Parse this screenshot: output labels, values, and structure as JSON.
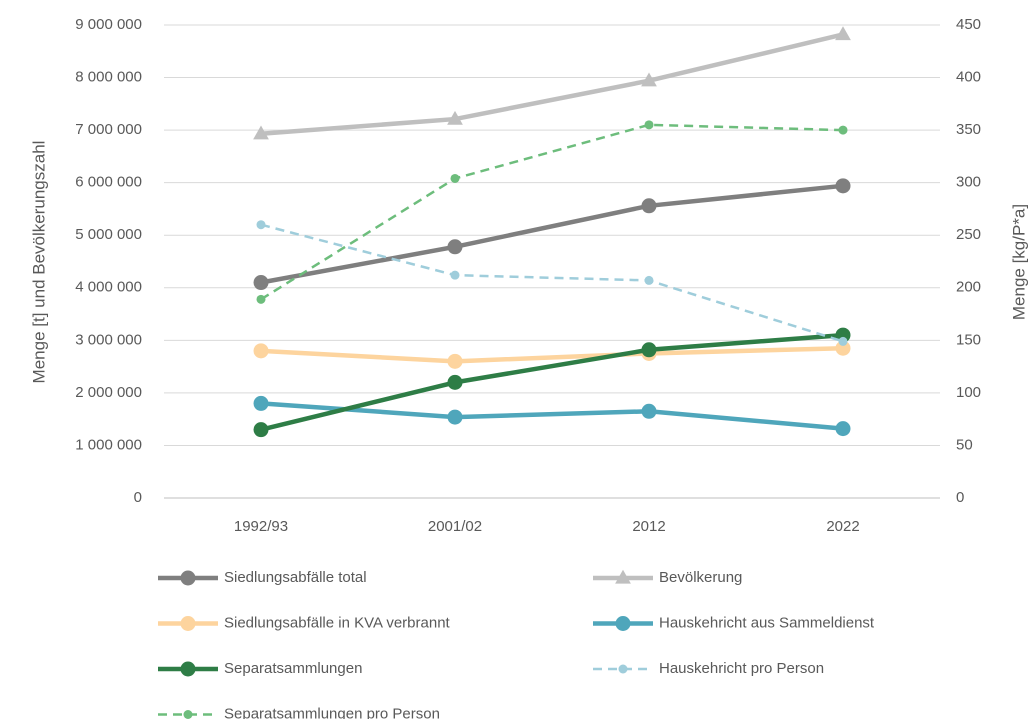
{
  "chart_data": {
    "type": "line",
    "categories": [
      "1992/93",
      "2001/02",
      "2012",
      "2022"
    ],
    "ylabel": "Menge [t] und Bevölkerungszahl",
    "y2label": "Menge [kg/P*a]",
    "ylim": [
      0,
      9000000
    ],
    "yticks": [
      0,
      {
        "value": 1000000,
        "label": "1 000 000"
      },
      {
        "value": 2000000,
        "label": "2 000 000"
      },
      {
        "value": 3000000,
        "label": "3 000 000"
      },
      {
        "value": 4000000,
        "label": "4 000 000"
      },
      {
        "value": 5000000,
        "label": "5 000 000"
      },
      {
        "value": 6000000,
        "label": "6 000 000"
      },
      {
        "value": 7000000,
        "label": "7 000 000"
      },
      {
        "value": 8000000,
        "label": "8 000 000"
      },
      {
        "value": 9000000,
        "label": "9 000 000"
      }
    ],
    "y2lim": [
      0,
      450
    ],
    "y2ticks": [
      0,
      50,
      100,
      150,
      200,
      250,
      300,
      350,
      400,
      450
    ],
    "grid": true,
    "legend": "bottom",
    "series": [
      {
        "name": "Siedlungsabfälle total",
        "color": "#7f7f7f",
        "marker": "circle",
        "line_style": "solid",
        "values": [
          4100000,
          4780000,
          5560000,
          5940000
        ]
      },
      {
        "name": "Bevölkerung",
        "color": "#bfbfbf",
        "marker": "triangle",
        "line_style": "solid",
        "values": [
          6930000,
          7210000,
          7940000,
          8820000
        ]
      },
      {
        "name": "Siedlungsabfälle in KVA verbrannt",
        "color": "#fdd49e",
        "marker": "circle",
        "line_style": "solid",
        "values": [
          2800000,
          2600000,
          2750000,
          2850000
        ]
      },
      {
        "name": "Hauskehricht aus Sammeldienst",
        "color": "#4fa6bb",
        "marker": "circle",
        "line_style": "solid",
        "values": [
          1800000,
          1540000,
          1650000,
          1320000
        ]
      },
      {
        "name": "Separatsammlungen",
        "color": "#2e7d46",
        "marker": "circle",
        "line_style": "solid",
        "values": [
          1300000,
          2200000,
          2820000,
          3100000
        ]
      },
      {
        "name": "Hauskehricht pro Person",
        "color": "#9fcddb",
        "marker": "circle",
        "line_style": "dashed",
        "axis": "y2",
        "values": [
          260,
          212,
          207,
          149
        ]
      },
      {
        "name": "Separatsammlungen pro Person",
        "color": "#6dbd7c",
        "marker": "circle",
        "line_style": "dashed",
        "axis": "y2",
        "values": [
          189,
          304,
          355,
          350
        ]
      }
    ]
  }
}
